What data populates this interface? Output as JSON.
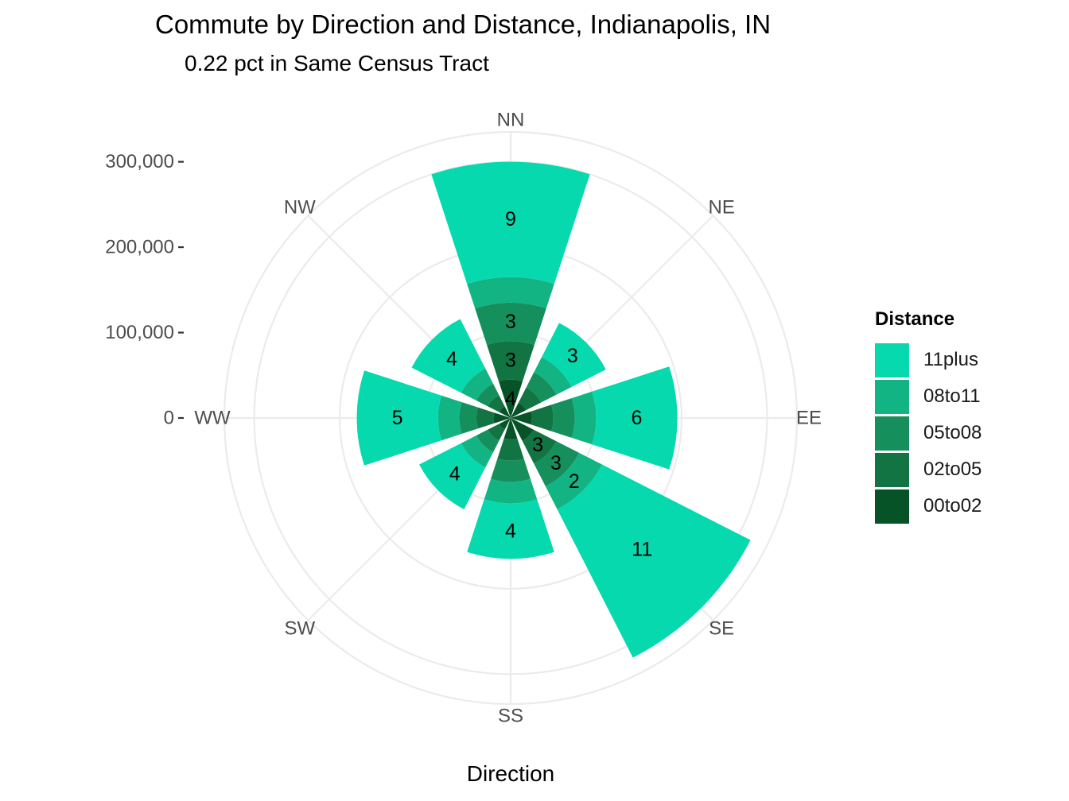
{
  "chart_data": {
    "type": "bar",
    "coordinate_system": "polar (stacked wind rose)",
    "title": "Commute by Direction and Distance, Indianapolis, IN",
    "subtitle": "0.22 pct in Same Census Tract",
    "xlabel": "Direction",
    "ylabel": "",
    "categories": [
      "NN",
      "NE",
      "EE",
      "SE",
      "SS",
      "SW",
      "WW",
      "NW"
    ],
    "radial_ticks": [
      0,
      100000,
      200000,
      300000
    ],
    "radial_tick_labels": [
      "0",
      "100,000",
      "200,000",
      "300,000"
    ],
    "ylim": [
      0,
      335000
    ],
    "legend_title": "Distance",
    "legend_position": "right",
    "grid": true,
    "series": [
      {
        "name": "00to02",
        "color": "#055326",
        "values": [
          45000,
          20000,
          25000,
          30000,
          25000,
          15000,
          20000,
          15000
        ]
      },
      {
        "name": "02to05",
        "color": "#117442",
        "values": [
          45000,
          20000,
          25000,
          30000,
          25000,
          15000,
          20000,
          15000
        ]
      },
      {
        "name": "05to08",
        "color": "#158f5c",
        "values": [
          45000,
          20000,
          25000,
          30000,
          25000,
          15000,
          20000,
          15000
        ]
      },
      {
        "name": "08to11",
        "color": "#13b483",
        "values": [
          30000,
          20000,
          25000,
          30000,
          25000,
          20000,
          25000,
          20000
        ]
      },
      {
        "name": "11plus",
        "color": "#06d9ae",
        "values": [
          135000,
          45000,
          95000,
          195000,
          65000,
          55000,
          95000,
          65000
        ]
      }
    ],
    "data_labels": [
      {
        "category": "NN",
        "series": "11plus",
        "text": "9"
      },
      {
        "category": "NN",
        "series": "05to08",
        "text": "3"
      },
      {
        "category": "NN",
        "series": "02to05",
        "text": "3"
      },
      {
        "category": "NN",
        "series": "00to02",
        "text": "4"
      },
      {
        "category": "NE",
        "series": "11plus",
        "text": "3"
      },
      {
        "category": "EE",
        "series": "11plus",
        "text": "6"
      },
      {
        "category": "SE",
        "series": "11plus",
        "text": "11"
      },
      {
        "category": "SE",
        "series": "08to11",
        "text": "2"
      },
      {
        "category": "SE",
        "series": "05to08",
        "text": "3"
      },
      {
        "category": "SE",
        "series": "02to05",
        "text": "3"
      },
      {
        "category": "SS",
        "series": "11plus",
        "text": "4"
      },
      {
        "category": "SW",
        "series": "11plus",
        "text": "4"
      },
      {
        "category": "WW",
        "series": "11plus",
        "text": "5"
      },
      {
        "category": "NW",
        "series": "11plus",
        "text": "4"
      }
    ]
  }
}
